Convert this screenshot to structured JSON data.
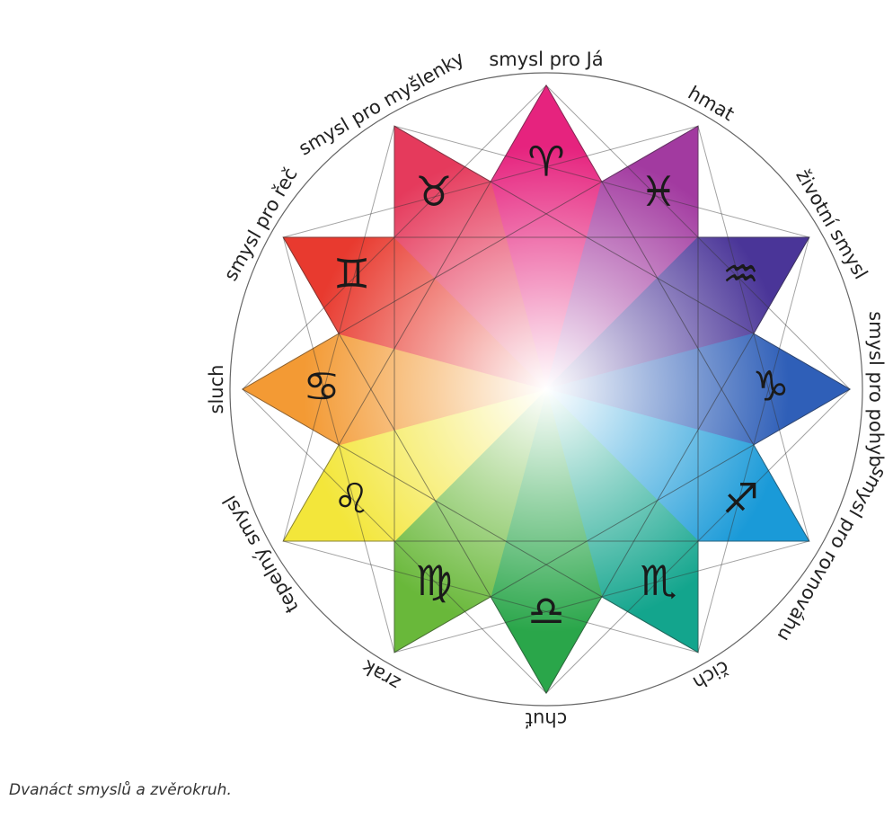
{
  "wheel": {
    "segments": [
      {
        "sense": "smysl pro Já",
        "sign": "♈",
        "color": "#e6237e"
      },
      {
        "sense": "hmat",
        "sign": "♓",
        "color": "#a23aa0"
      },
      {
        "sense": "životní smysl",
        "sign": "♒",
        "color": "#4a3598"
      },
      {
        "sense": "smysl pro pohyb",
        "sign": "♑",
        "color": "#2f5fb8"
      },
      {
        "sense": "smysl pro rovnováhu",
        "sign": "♐",
        "color": "#1a9ad8"
      },
      {
        "sense": "čich",
        "sign": "♏",
        "color": "#13a58d"
      },
      {
        "sense": "chuť",
        "sign": "♎",
        "color": "#2aa64a"
      },
      {
        "sense": "zrak",
        "sign": "♍",
        "color": "#69b83a"
      },
      {
        "sense": "tepelný smysl",
        "sign": "♌",
        "color": "#f3e63a"
      },
      {
        "sense": "sluch",
        "sign": "♋",
        "color": "#f39a34"
      },
      {
        "sense": "smysl pro řeč",
        "sign": "♊",
        "color": "#e83a2f"
      },
      {
        "sense": "smysl pro myšlenky",
        "sign": "♉",
        "color": "#e53a5c"
      }
    ]
  },
  "caption": "Dvanáct smyslů a zvěrokruh."
}
